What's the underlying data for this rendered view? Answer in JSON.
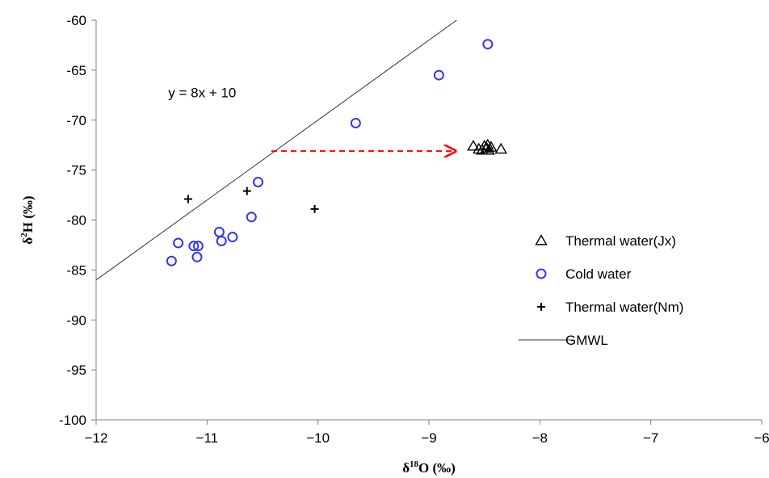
{
  "chart_data": {
    "type": "scatter",
    "xlabel": {
      "base": "δ",
      "sup": "18",
      "rest": "O (‰)"
    },
    "ylabel": {
      "base": "δ",
      "sup": "2",
      "rest": "H (‰)"
    },
    "xlim": [
      -12,
      -6
    ],
    "ylim": [
      -100,
      -60
    ],
    "xticks": [
      -12,
      -11,
      -10,
      -9,
      -8,
      -7,
      -6
    ],
    "xtick_labels": [
      "−12",
      "−11",
      "−10",
      "−9",
      "−8",
      "−7",
      "−6"
    ],
    "yticks": [
      -100,
      -95,
      -90,
      -85,
      -80,
      -75,
      -70,
      -65,
      -60
    ],
    "ytick_labels": [
      "-100",
      "-95",
      "-90",
      "-85",
      "-80",
      "-75",
      "-70",
      "-65",
      "-60"
    ],
    "grid": false,
    "legend_position": "right",
    "series": [
      {
        "name": "Thermal water(Jx)",
        "marker": "triangle",
        "color": "#000000",
        "points": [
          {
            "x": -8.6,
            "y": -72.6
          },
          {
            "x": -8.55,
            "y": -72.9
          },
          {
            "x": -8.52,
            "y": -73.0
          },
          {
            "x": -8.5,
            "y": -72.6
          },
          {
            "x": -8.48,
            "y": -72.8
          },
          {
            "x": -8.47,
            "y": -72.5
          },
          {
            "x": -8.46,
            "y": -73.0
          },
          {
            "x": -8.44,
            "y": -72.7
          },
          {
            "x": -8.35,
            "y": -72.9
          }
        ]
      },
      {
        "name": "Cold water",
        "marker": "circle",
        "color": "#3333ff",
        "points": [
          {
            "x": -8.47,
            "y": -62.4
          },
          {
            "x": -8.91,
            "y": -65.5
          },
          {
            "x": -9.66,
            "y": -70.3
          },
          {
            "x": -10.54,
            "y": -76.2
          },
          {
            "x": -10.6,
            "y": -79.7
          },
          {
            "x": -10.77,
            "y": -81.7
          },
          {
            "x": -10.87,
            "y": -82.1
          },
          {
            "x": -10.89,
            "y": -81.2
          },
          {
            "x": -11.08,
            "y": -82.6
          },
          {
            "x": -11.12,
            "y": -82.6
          },
          {
            "x": -11.09,
            "y": -83.7
          },
          {
            "x": -11.26,
            "y": -82.3
          },
          {
            "x": -11.32,
            "y": -84.1
          }
        ]
      },
      {
        "name": "Thermal water(Nm)",
        "marker": "plus",
        "color": "#000000",
        "points": [
          {
            "x": -11.17,
            "y": -77.9
          },
          {
            "x": -10.64,
            "y": -77.1
          },
          {
            "x": -10.03,
            "y": -78.9
          }
        ]
      },
      {
        "name": "GMWL",
        "marker": "line",
        "color": "#333333",
        "slope": 8,
        "intercept": 10,
        "x_range": [
          -12,
          -8.75
        ]
      }
    ],
    "annotations": [
      {
        "type": "text",
        "text": "y = 8x + 10",
        "x": -11.35,
        "y": -67.7
      },
      {
        "type": "arrow",
        "color": "#ff0000",
        "dashed": true,
        "from": {
          "x": -10.42,
          "y": -73.1
        },
        "to": {
          "x": -8.76,
          "y": -73.1
        }
      }
    ]
  }
}
